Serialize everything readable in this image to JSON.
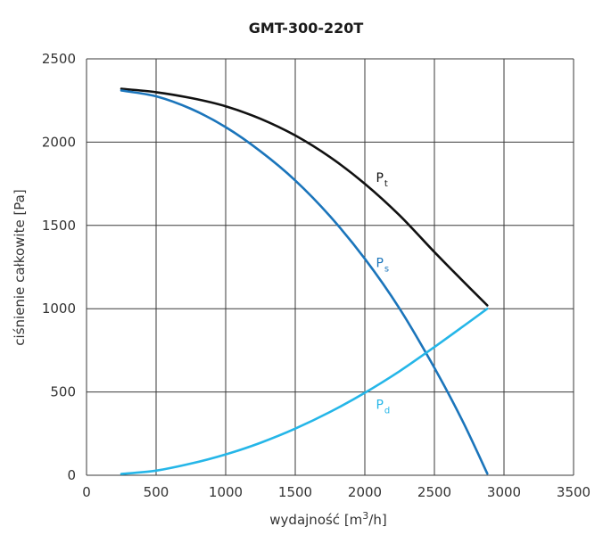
{
  "chart_data": {
    "type": "line",
    "title": "GMT-300-220T",
    "xlabel_main": "wydajność [m",
    "xlabel_sup": "3",
    "xlabel_end": "/h]",
    "ylabel": "ciśnienie całkowite [Pa]",
    "xlim": [
      0,
      3500
    ],
    "ylim": [
      0,
      2500
    ],
    "xticks": [
      0,
      500,
      1000,
      1500,
      2000,
      2500,
      3000,
      3500
    ],
    "yticks": [
      0,
      500,
      1000,
      1500,
      2000,
      2500
    ],
    "grid": true,
    "series": [
      {
        "name": "P",
        "sub": "t",
        "color": "#111111",
        "x": [
          250,
          500,
          750,
          1000,
          1250,
          1500,
          1750,
          2000,
          2250,
          2500,
          2700,
          2880
        ],
        "y": [
          2320,
          2300,
          2265,
          2215,
          2140,
          2040,
          1910,
          1750,
          1560,
          1340,
          1170,
          1020
        ]
      },
      {
        "name": "P",
        "sub": "s",
        "color": "#1b75bb",
        "x": [
          250,
          500,
          750,
          1000,
          1250,
          1500,
          1750,
          2000,
          2250,
          2500,
          2700,
          2880
        ],
        "y": [
          2310,
          2275,
          2200,
          2090,
          1945,
          1770,
          1555,
          1300,
          1000,
          645,
          330,
          10
        ]
      },
      {
        "name": "P",
        "sub": "d",
        "color": "#25b6e8",
        "x": [
          250,
          500,
          750,
          1000,
          1250,
          1500,
          1750,
          2000,
          2250,
          2500,
          2700,
          2880
        ],
        "y": [
          8,
          28,
          70,
          125,
          195,
          280,
          380,
          495,
          625,
          770,
          890,
          1000
        ]
      }
    ],
    "labels": [
      {
        "text": "P",
        "sub": "t",
        "x": 2080,
        "y": 1760,
        "color": "#111111"
      },
      {
        "text": "P",
        "sub": "s",
        "x": 2080,
        "y": 1250,
        "color": "#1b75bb"
      },
      {
        "text": "P",
        "sub": "d",
        "x": 2080,
        "y": 400,
        "color": "#25b6e8"
      }
    ]
  }
}
